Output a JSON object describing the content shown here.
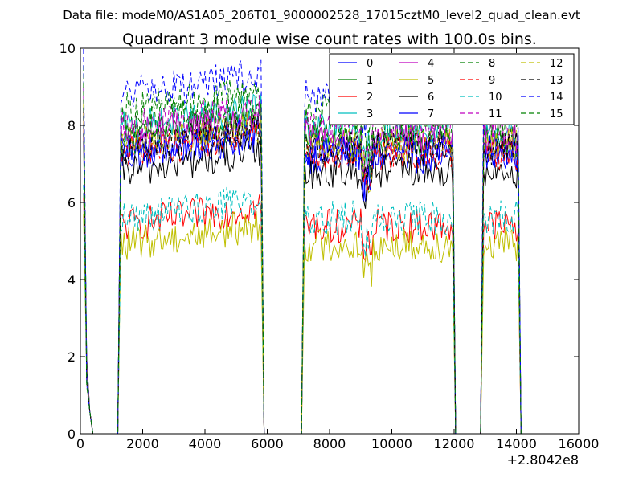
{
  "chart_data": {
    "type": "line",
    "suptitle": "Data file: modeM0/AS1A05_206T01_9000002528_17015cztM0_level2_quad_clean.evt",
    "title": "Quadrant 3 module wise count rates with 100.0s bins.",
    "xlabel": "",
    "ylabel": "",
    "offset_label": "+2.8042e8",
    "xlim": [
      0,
      16000
    ],
    "ylim": [
      0,
      10
    ],
    "x_ticks": [
      "0",
      "2000",
      "4000",
      "6000",
      "8000",
      "10000",
      "12000",
      "14000",
      "16000"
    ],
    "y_ticks": [
      "0",
      "2",
      "4",
      "6",
      "8",
      "10"
    ],
    "legend_position": "top-right",
    "segments": [
      {
        "start": 1300,
        "end": 5800
      },
      {
        "start": 7200,
        "end": 11950
      },
      {
        "start": 12950,
        "end": 14050
      }
    ],
    "series": [
      {
        "name": "0",
        "color": "#0000ff",
        "dash": "solid",
        "level": 7.2
      },
      {
        "name": "1",
        "color": "#008000",
        "dash": "solid",
        "level": 7.6
      },
      {
        "name": "2",
        "color": "#ff0000",
        "dash": "solid",
        "level": 5.4
      },
      {
        "name": "3",
        "color": "#00bfbf",
        "dash": "solid",
        "level": 7.9
      },
      {
        "name": "4",
        "color": "#bf00bf",
        "dash": "solid",
        "level": 7.7
      },
      {
        "name": "5",
        "color": "#bfbf00",
        "dash": "solid",
        "level": 4.9
      },
      {
        "name": "6",
        "color": "#000000",
        "dash": "solid",
        "level": 6.8
      },
      {
        "name": "7",
        "color": "#0000ff",
        "dash": "solid",
        "level": 7.3
      },
      {
        "name": "8",
        "color": "#008000",
        "dash": "dashed",
        "level": 8.4
      },
      {
        "name": "9",
        "color": "#ff0000",
        "dash": "dashed",
        "level": 7.3
      },
      {
        "name": "10",
        "color": "#00bfbf",
        "dash": "dashed",
        "level": 5.6
      },
      {
        "name": "11",
        "color": "#bf00bf",
        "dash": "dashed",
        "level": 7.9
      },
      {
        "name": "12",
        "color": "#bfbf00",
        "dash": "dashed",
        "level": 7.5
      },
      {
        "name": "13",
        "color": "#000000",
        "dash": "dashed",
        "level": 7.4
      },
      {
        "name": "14",
        "color": "#0000ff",
        "dash": "dashed",
        "level": 8.8
      },
      {
        "name": "15",
        "color": "#008000",
        "dash": "dashed",
        "level": 8.0
      }
    ]
  }
}
